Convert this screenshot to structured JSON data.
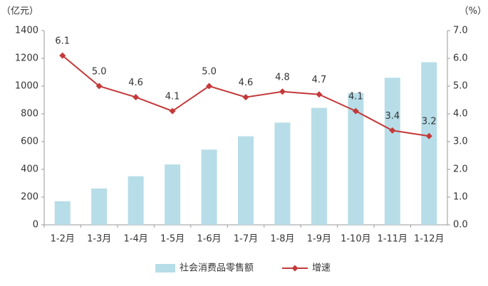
{
  "chart_data": {
    "type": "combo",
    "y_label": "（亿元）",
    "y2_label": "（%）",
    "categories": [
      "1-2月",
      "1-3月",
      "1-4月",
      "1-5月",
      "1-6月",
      "1-7月",
      "1-8月",
      "1-9月",
      "1-10月",
      "1-11月",
      "1-12月"
    ],
    "series": [
      {
        "name": "社会消费品零售额",
        "type": "bar",
        "color": "#b7dde8",
        "values": [
          170,
          262,
          350,
          435,
          542,
          638,
          737,
          843,
          950,
          1060,
          1172
        ]
      },
      {
        "name": "增速",
        "type": "line",
        "axis": "y2",
        "color": "#c4393a",
        "values": [
          6.1,
          5.0,
          4.6,
          4.1,
          5.0,
          4.6,
          4.8,
          4.7,
          4.1,
          3.4,
          3.2
        ],
        "value_labels": [
          "6.1",
          "5.0",
          "4.6",
          "4.1",
          "5.0",
          "4.6",
          "4.8",
          "4.7",
          "4.1",
          "3.4",
          "3.2"
        ]
      }
    ],
    "ylim": [
      0,
      1400
    ],
    "yticks": [
      0,
      200,
      400,
      600,
      800,
      1000,
      1200,
      1400
    ],
    "y2lim": [
      0,
      7
    ],
    "y2ticks": [
      {
        "value": 0,
        "label": "0.0"
      },
      {
        "value": 1,
        "label": "1.0"
      },
      {
        "value": 2,
        "label": "2.0"
      },
      {
        "value": 3,
        "label": "3.0"
      },
      {
        "value": 4,
        "label": "4.0"
      },
      {
        "value": 5,
        "label": "5.0"
      },
      {
        "value": 6,
        "label": "6.0"
      },
      {
        "value": 7,
        "label": "7.0"
      }
    ],
    "legend": "bottom"
  }
}
